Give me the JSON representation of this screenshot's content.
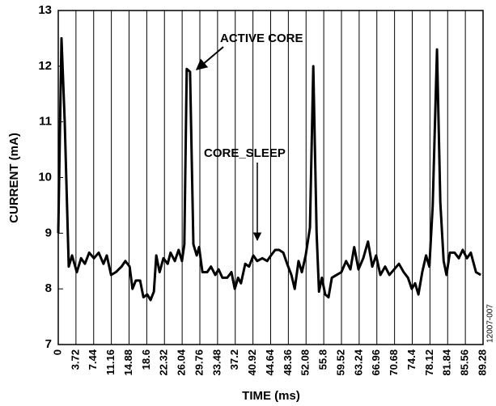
{
  "chart_data": {
    "type": "line",
    "xlabel": "TIME (ms)",
    "ylabel": "CURRENT (mA)",
    "annotations": [
      "ACTIVE CORE",
      "CORE_SLEEP"
    ],
    "note": "12007-007",
    "color": "#000000",
    "grid": "x",
    "xlim": [
      0,
      89.28
    ],
    "ylim": [
      7,
      13
    ],
    "xticks": [
      0,
      3.72,
      7.44,
      11.16,
      14.88,
      18.6,
      22.32,
      26.04,
      29.76,
      33.48,
      37.2,
      40.92,
      44.64,
      48.36,
      52.08,
      55.8,
      59.52,
      63.24,
      66.96,
      70.68,
      74.4,
      78.12,
      81.84,
      85.56,
      89.28
    ],
    "yticks": [
      7,
      8,
      9,
      10,
      11,
      12,
      13
    ],
    "x": [
      0,
      0.68,
      1.36,
      2.2,
      2.9,
      3.9,
      4.8,
      5.6,
      6.5,
      7.5,
      8.5,
      9.5,
      10.2,
      11.1,
      12.1,
      13.3,
      14.1,
      15.0,
      15.6,
      16.3,
      17.2,
      17.9,
      18.7,
      19.4,
      20.1,
      20.6,
      21.3,
      22.1,
      23.0,
      23.6,
      24.5,
      25.3,
      26.0,
      26.5,
      27.0,
      27.7,
      28.4,
      29.1,
      29.6,
      30.3,
      31.3,
      32.1,
      33.0,
      33.7,
      34.5,
      35.5,
      36.4,
      37.1,
      37.8,
      38.4,
      39.3,
      40.1,
      41.0,
      41.8,
      42.9,
      43.9,
      44.7,
      45.6,
      46.4,
      47.3,
      48.1,
      49.0,
      49.7,
      50.5,
      51.2,
      52.0,
      52.9,
      53.6,
      54.3,
      54.8,
      55.4,
      56.1,
      56.8,
      57.5,
      58.5,
      59.5,
      60.5,
      61.4,
      62.2,
      63.1,
      64.1,
      65.1,
      66.0,
      66.8,
      67.7,
      68.7,
      69.6,
      70.6,
      71.6,
      72.6,
      73.5,
      74.3,
      75.0,
      75.7,
      76.5,
      77.3,
      78.0,
      78.7,
      79.6,
      80.3,
      81.0,
      81.6,
      82.3,
      83.3,
      84.2,
      85.0,
      85.9,
      86.7,
      87.8,
      88.8
    ],
    "values": [
      9.0,
      12.5,
      11.0,
      8.4,
      8.6,
      8.3,
      8.55,
      8.45,
      8.65,
      8.55,
      8.65,
      8.45,
      8.6,
      8.25,
      8.3,
      8.4,
      8.5,
      8.4,
      8.0,
      8.15,
      8.15,
      7.85,
      7.9,
      7.8,
      7.95,
      8.6,
      8.3,
      8.55,
      8.45,
      8.65,
      8.5,
      8.7,
      8.5,
      8.8,
      11.95,
      11.9,
      8.8,
      8.6,
      8.75,
      8.3,
      8.3,
      8.4,
      8.25,
      8.35,
      8.2,
      8.2,
      8.3,
      8.0,
      8.2,
      8.1,
      8.45,
      8.4,
      8.6,
      8.5,
      8.55,
      8.5,
      8.6,
      8.7,
      8.7,
      8.65,
      8.45,
      8.25,
      8.0,
      8.5,
      8.3,
      8.6,
      9.1,
      12.0,
      9.0,
      7.95,
      8.2,
      7.9,
      7.85,
      8.2,
      8.25,
      8.3,
      8.5,
      8.35,
      8.75,
      8.35,
      8.55,
      8.85,
      8.4,
      8.6,
      8.25,
      8.4,
      8.25,
      8.35,
      8.45,
      8.3,
      8.2,
      8.0,
      8.1,
      7.9,
      8.3,
      8.6,
      8.4,
      9.5,
      12.3,
      9.55,
      8.5,
      8.25,
      8.65,
      8.65,
      8.55,
      8.7,
      8.55,
      8.65,
      8.3,
      8.25
    ]
  }
}
